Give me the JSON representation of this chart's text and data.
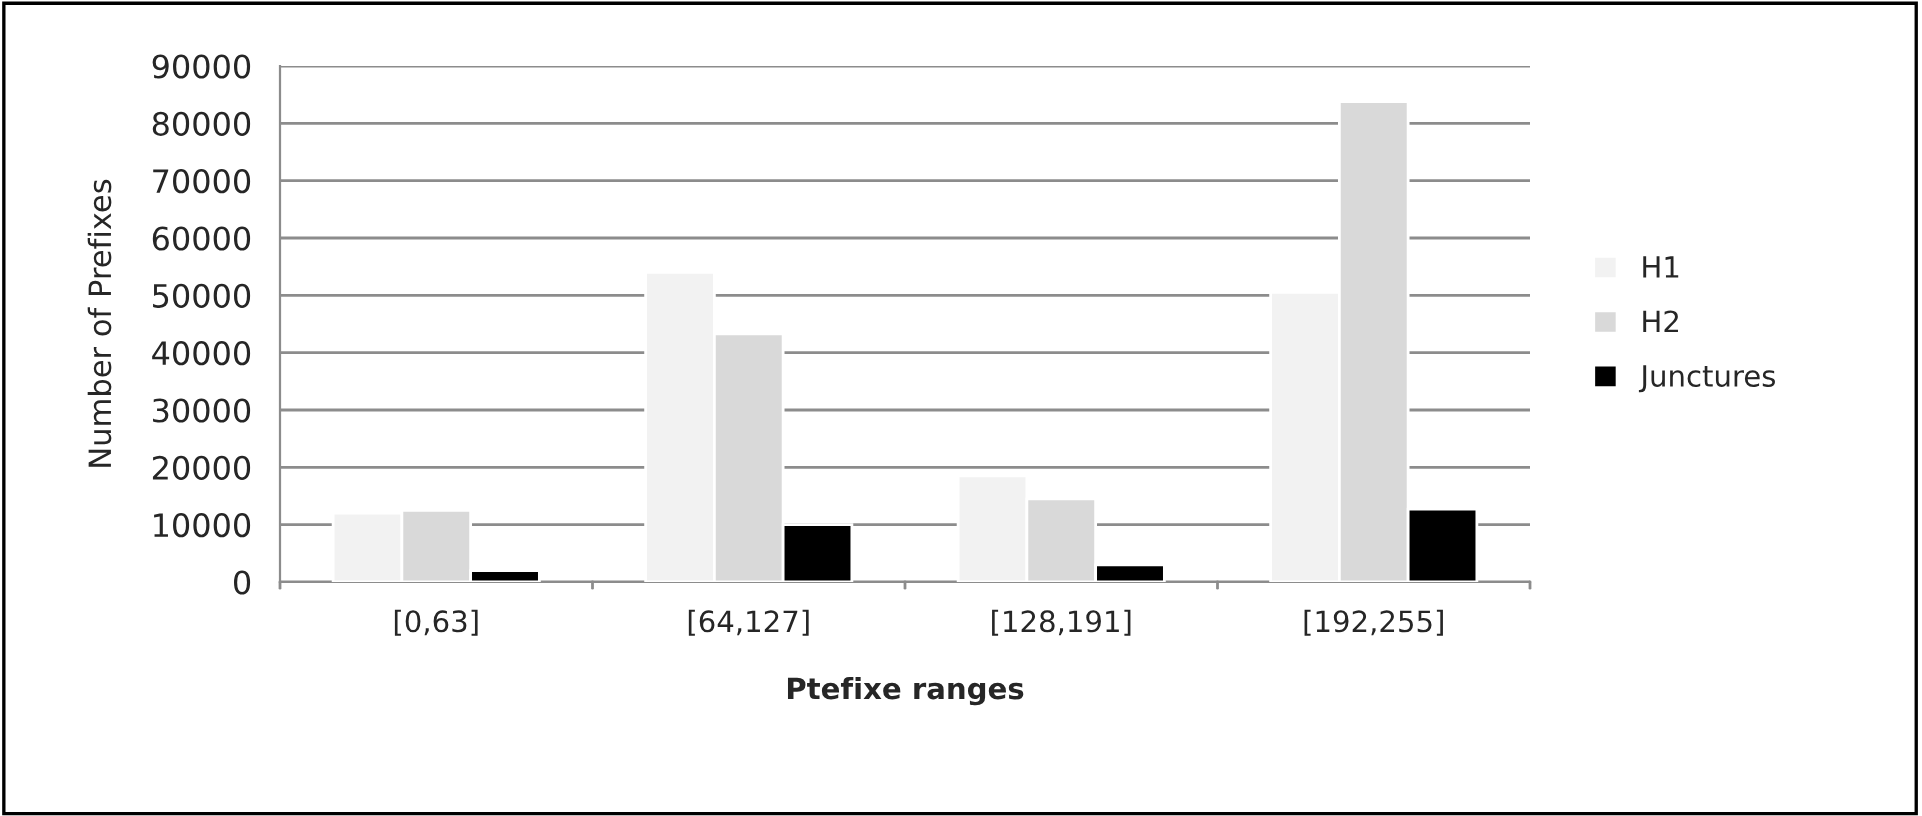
{
  "chart_data": {
    "type": "bar",
    "xlabel": "Ptefixe ranges",
    "ylabel": "Number of Prefixes",
    "categories": [
      "[0,63]",
      "[64,127]",
      "[128,191]",
      "[192,255]"
    ],
    "series": [
      {
        "name": "H1",
        "color": "#f2f2f2",
        "values": [
          12000,
          54000,
          18500,
          50500
        ]
      },
      {
        "name": "H2",
        "color": "#d9d9d9",
        "values": [
          12500,
          43300,
          14500,
          83800
        ]
      },
      {
        "name": "Junctures",
        "color": "#000000",
        "values": [
          2000,
          10000,
          3000,
          12700
        ]
      }
    ],
    "ylim": [
      0,
      90000
    ],
    "yticks": [
      0,
      10000,
      20000,
      30000,
      40000,
      50000,
      60000,
      70000,
      80000,
      90000
    ],
    "grid": "y",
    "legend": "right"
  }
}
